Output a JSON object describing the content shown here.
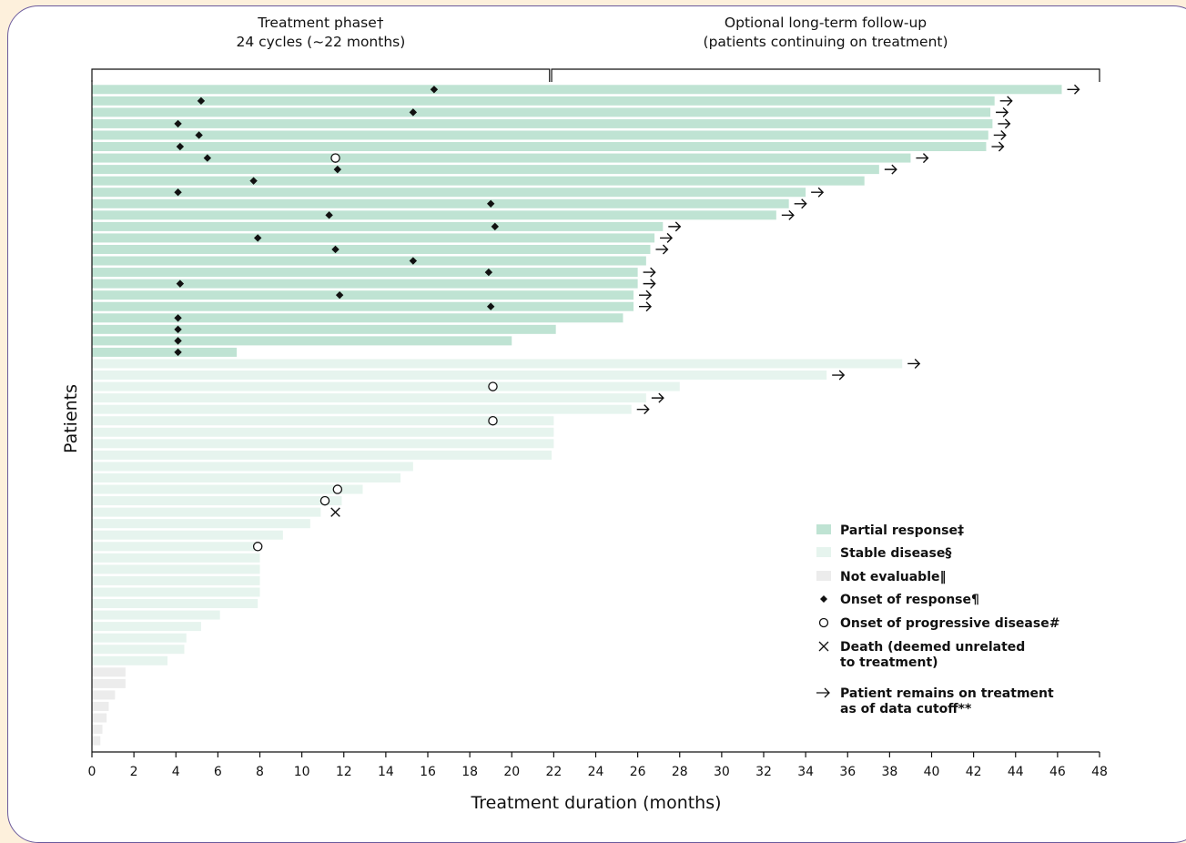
{
  "chart_data": {
    "type": "swimmer",
    "xlabel": "Treatment duration (months)",
    "ylabel": "Patients",
    "xlim": [
      0,
      48
    ],
    "xticks": [
      0,
      2,
      4,
      6,
      8,
      10,
      12,
      14,
      16,
      18,
      20,
      22,
      24,
      26,
      28,
      30,
      32,
      34,
      36,
      38,
      40,
      42,
      44,
      46,
      48
    ],
    "phases": [
      {
        "label_line1": "Treatment phase†",
        "label_line2": "24 cycles (~22 months)",
        "start": 0,
        "end": 21.8
      },
      {
        "label_line1": "Optional long-term follow-up",
        "label_line2": "(patients continuing on treatment)",
        "start": 21.9,
        "end": 48
      }
    ],
    "colors": {
      "partial_response": "#bfe3d3",
      "stable_disease": "#e6f4ee",
      "not_evaluable": "#ececec",
      "marker": "#111111",
      "card_border": "#6b5a9c",
      "background": "#fdf0dc"
    },
    "legend": {
      "placement": "bottom-right",
      "items": [
        {
          "key": "partial_response",
          "label": "Partial response‡",
          "symbol": "box"
        },
        {
          "key": "stable_disease",
          "label": "Stable disease§",
          "symbol": "box"
        },
        {
          "key": "not_evaluable",
          "label": "Not evaluable‖",
          "symbol": "box"
        },
        {
          "key": "onset_response",
          "label": "Onset of response¶",
          "symbol": "diamond"
        },
        {
          "key": "onset_pd",
          "label": "Onset of progressive disease#",
          "symbol": "circle"
        },
        {
          "key": "death",
          "label": "Death (deemed unrelated\nto treatment)",
          "symbol": "cross"
        },
        {
          "key": "ongoing",
          "label": "Patient remains on treatment\nas of data cutoff**",
          "symbol": "arrow"
        }
      ]
    },
    "patients": [
      {
        "group": "partial_response",
        "duration": 46.2,
        "response": 16.3,
        "arrow": true
      },
      {
        "group": "partial_response",
        "duration": 43.0,
        "response": 5.2,
        "arrow": true
      },
      {
        "group": "partial_response",
        "duration": 42.8,
        "response": 15.3,
        "arrow": true
      },
      {
        "group": "partial_response",
        "duration": 42.9,
        "response": 4.1,
        "arrow": true
      },
      {
        "group": "partial_response",
        "duration": 42.7,
        "response": 5.1,
        "arrow": true
      },
      {
        "group": "partial_response",
        "duration": 42.6,
        "response": 4.2,
        "arrow": true
      },
      {
        "group": "partial_response",
        "duration": 39.0,
        "response": 5.5,
        "pd": 11.6,
        "arrow": true
      },
      {
        "group": "partial_response",
        "duration": 37.5,
        "response": 11.7,
        "arrow": true
      },
      {
        "group": "partial_response",
        "duration": 36.8,
        "response": 7.7
      },
      {
        "group": "partial_response",
        "duration": 34.0,
        "response": 4.1,
        "arrow": true
      },
      {
        "group": "partial_response",
        "duration": 33.2,
        "response": 19.0,
        "arrow": true
      },
      {
        "group": "partial_response",
        "duration": 32.6,
        "response": 11.3,
        "arrow": true
      },
      {
        "group": "partial_response",
        "duration": 27.2,
        "response": 19.2,
        "arrow": true
      },
      {
        "group": "partial_response",
        "duration": 26.8,
        "response": 7.9,
        "arrow": true
      },
      {
        "group": "partial_response",
        "duration": 26.6,
        "response": 11.6,
        "arrow": true
      },
      {
        "group": "partial_response",
        "duration": 26.4,
        "response": 15.3
      },
      {
        "group": "partial_response",
        "duration": 26.0,
        "response": 18.9,
        "arrow": true
      },
      {
        "group": "partial_response",
        "duration": 26.0,
        "response": 4.2,
        "arrow": true
      },
      {
        "group": "partial_response",
        "duration": 25.8,
        "response": 11.8,
        "arrow": true
      },
      {
        "group": "partial_response",
        "duration": 25.8,
        "response": 19.0,
        "arrow": true
      },
      {
        "group": "partial_response",
        "duration": 25.3,
        "response": 4.1
      },
      {
        "group": "partial_response",
        "duration": 22.1,
        "response": 4.1
      },
      {
        "group": "partial_response",
        "duration": 20.0,
        "response": 4.1
      },
      {
        "group": "partial_response",
        "duration": 6.9,
        "response": 4.1
      },
      {
        "group": "stable_disease",
        "duration": 38.6,
        "arrow": true
      },
      {
        "group": "stable_disease",
        "duration": 35.0,
        "arrow": true
      },
      {
        "group": "stable_disease",
        "duration": 28.0,
        "pd": 19.1
      },
      {
        "group": "stable_disease",
        "duration": 26.4,
        "arrow": true
      },
      {
        "group": "stable_disease",
        "duration": 25.7,
        "arrow": true
      },
      {
        "group": "stable_disease",
        "duration": 22.0,
        "pd": 19.1
      },
      {
        "group": "stable_disease",
        "duration": 22.0
      },
      {
        "group": "stable_disease",
        "duration": 22.0
      },
      {
        "group": "stable_disease",
        "duration": 21.9
      },
      {
        "group": "stable_disease",
        "duration": 15.3
      },
      {
        "group": "stable_disease",
        "duration": 14.7
      },
      {
        "group": "stable_disease",
        "duration": 12.9,
        "pd": 11.7
      },
      {
        "group": "stable_disease",
        "duration": 11.9,
        "pd": 11.1
      },
      {
        "group": "stable_disease",
        "duration": 10.9,
        "death": 11.6
      },
      {
        "group": "stable_disease",
        "duration": 10.4
      },
      {
        "group": "stable_disease",
        "duration": 9.1
      },
      {
        "group": "stable_disease",
        "duration": 8.0,
        "pd": 7.9
      },
      {
        "group": "stable_disease",
        "duration": 8.0
      },
      {
        "group": "stable_disease",
        "duration": 8.0
      },
      {
        "group": "stable_disease",
        "duration": 8.0
      },
      {
        "group": "stable_disease",
        "duration": 8.0
      },
      {
        "group": "stable_disease",
        "duration": 7.9
      },
      {
        "group": "stable_disease",
        "duration": 6.1
      },
      {
        "group": "stable_disease",
        "duration": 5.2
      },
      {
        "group": "stable_disease",
        "duration": 4.5
      },
      {
        "group": "stable_disease",
        "duration": 4.4
      },
      {
        "group": "stable_disease",
        "duration": 3.6
      },
      {
        "group": "not_evaluable",
        "duration": 1.6
      },
      {
        "group": "not_evaluable",
        "duration": 1.6
      },
      {
        "group": "not_evaluable",
        "duration": 1.1
      },
      {
        "group": "not_evaluable",
        "duration": 0.8
      },
      {
        "group": "not_evaluable",
        "duration": 0.7
      },
      {
        "group": "not_evaluable",
        "duration": 0.5
      },
      {
        "group": "not_evaluable",
        "duration": 0.4
      }
    ]
  }
}
